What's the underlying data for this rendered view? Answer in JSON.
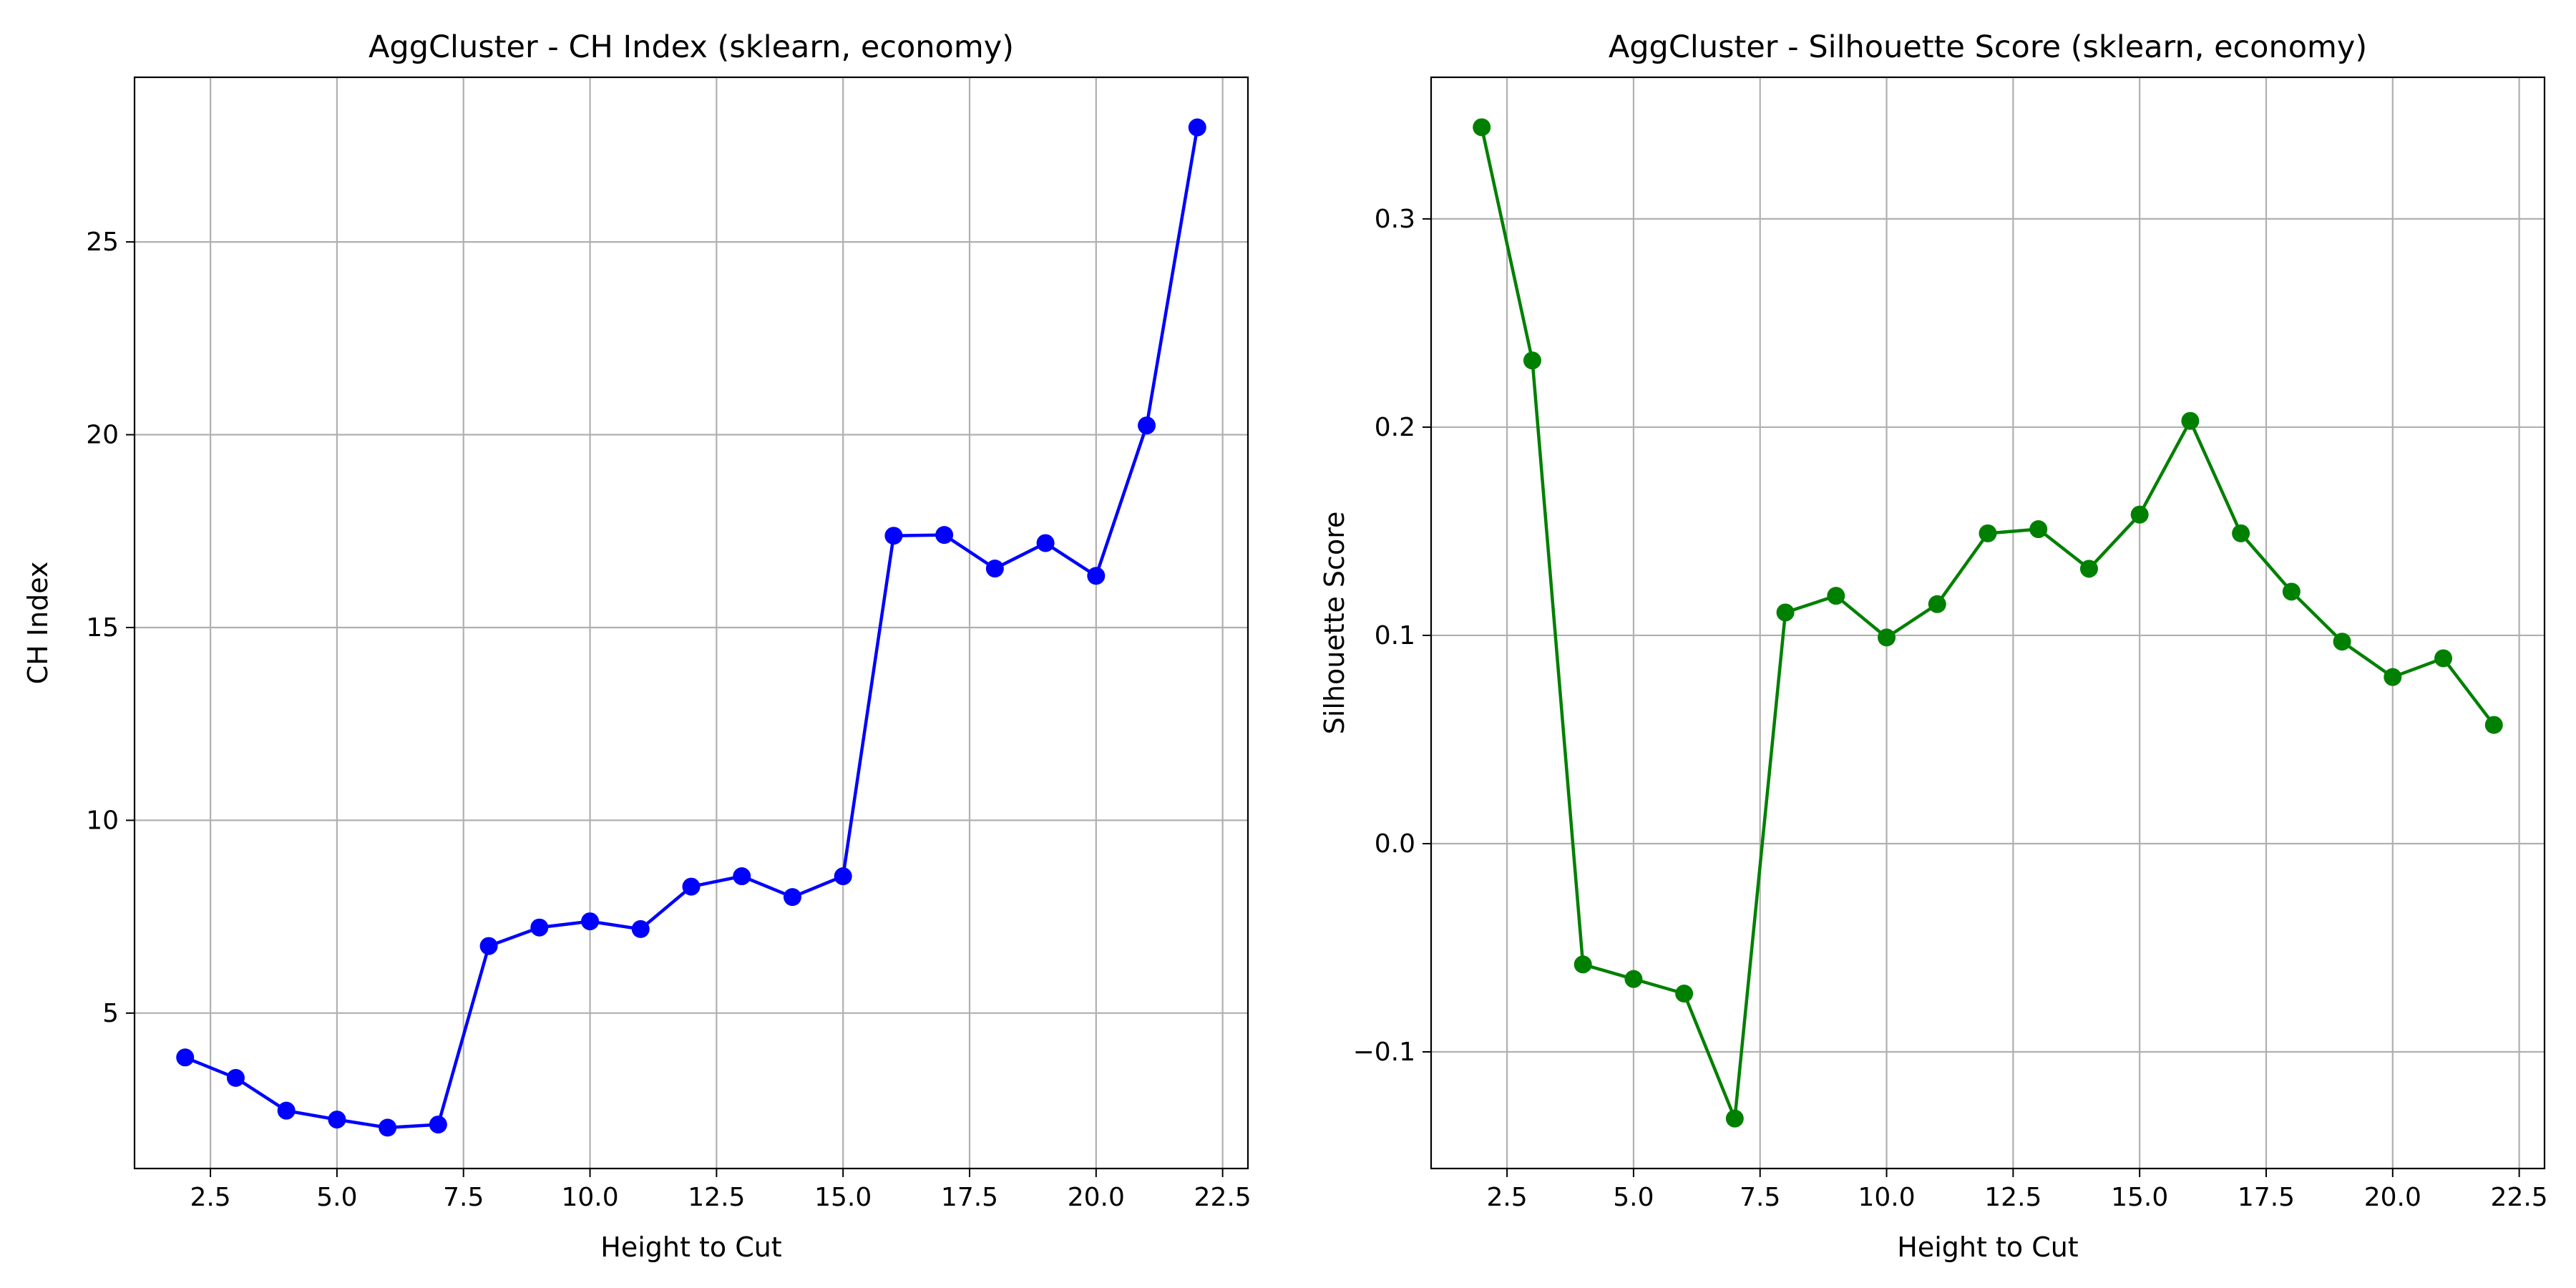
{
  "chart_data": [
    {
      "type": "line",
      "title": "AggCluster - CH Index (sklearn, economy)",
      "xlabel": "Height to Cut",
      "ylabel": "CH Index",
      "xlim": [
        1.0,
        23.0
      ],
      "ylim": [
        0.97,
        29.27
      ],
      "xticks": [
        2.5,
        5.0,
        7.5,
        10.0,
        12.5,
        15.0,
        17.5,
        20.0,
        22.5
      ],
      "xtick_labels": [
        "2.5",
        "5.0",
        "7.5",
        "10.0",
        "12.5",
        "15.0",
        "17.5",
        "20.0",
        "22.5"
      ],
      "yticks": [
        5,
        10,
        15,
        20,
        25
      ],
      "ytick_labels": [
        "5",
        "10",
        "15",
        "20",
        "25"
      ],
      "grid": true,
      "color": "#0000ff",
      "series": [
        {
          "x": [
            2,
            3,
            4,
            5,
            6,
            7,
            8,
            9,
            10,
            11,
            12,
            13,
            14,
            15,
            16,
            17,
            18,
            19,
            20,
            21,
            22
          ],
          "values": [
            3.85,
            3.32,
            2.47,
            2.24,
            2.03,
            2.11,
            6.74,
            7.22,
            7.38,
            7.18,
            8.28,
            8.55,
            8.01,
            8.55,
            17.38,
            17.4,
            16.53,
            17.19,
            16.34,
            20.24,
            27.97
          ]
        }
      ]
    },
    {
      "type": "line",
      "title": "AggCluster - Silhouette Score (sklearn, economy)",
      "xlabel": "Height to Cut",
      "ylabel": "Silhouette Score",
      "xlim": [
        1.0,
        23.0
      ],
      "ylim": [
        -0.156,
        0.368
      ],
      "xticks": [
        2.5,
        5.0,
        7.5,
        10.0,
        12.5,
        15.0,
        17.5,
        20.0,
        22.5
      ],
      "xtick_labels": [
        "2.5",
        "5.0",
        "7.5",
        "10.0",
        "12.5",
        "15.0",
        "17.5",
        "20.0",
        "22.5"
      ],
      "yticks": [
        -0.1,
        0.0,
        0.1,
        0.2,
        0.3
      ],
      "ytick_labels": [
        "−0.1",
        "0.0",
        "0.1",
        "0.2",
        "0.3"
      ],
      "grid": true,
      "color": "#008000",
      "series": [
        {
          "x": [
            2,
            3,
            4,
            5,
            6,
            7,
            8,
            9,
            10,
            11,
            12,
            13,
            14,
            15,
            16,
            17,
            18,
            19,
            20,
            21,
            22
          ],
          "values": [
            0.344,
            0.232,
            -0.058,
            -0.065,
            -0.072,
            -0.132,
            0.111,
            0.119,
            0.099,
            0.115,
            0.149,
            0.151,
            0.132,
            0.158,
            0.203,
            0.149,
            0.121,
            0.097,
            0.08,
            0.089,
            0.057
          ]
        }
      ]
    }
  ]
}
